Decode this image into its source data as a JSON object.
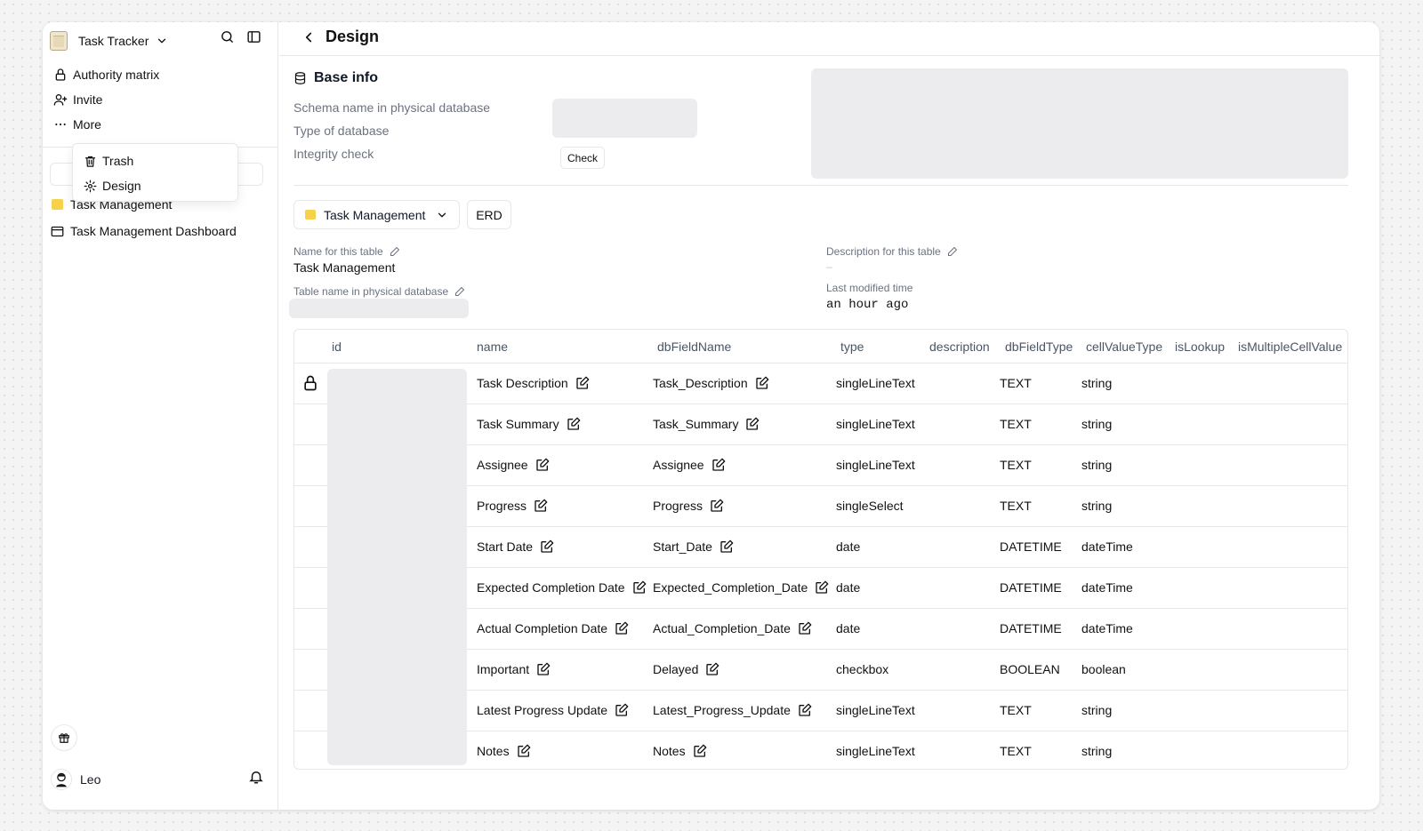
{
  "workspace": {
    "name": "Task Tracker"
  },
  "sidebar": {
    "nav": [
      {
        "label": "Authority matrix",
        "icon": "lock-icon"
      },
      {
        "label": "Invite",
        "icon": "user-plus-icon"
      },
      {
        "label": "More",
        "icon": "more-horizontal-icon"
      }
    ],
    "more_menu": [
      {
        "label": "Trash",
        "icon": "trash-icon"
      },
      {
        "label": "Design",
        "icon": "gear-icon"
      }
    ],
    "tables": [
      {
        "label": "Task Management",
        "icon": "folder-icon"
      },
      {
        "label": "Task Management Dashboard",
        "icon": "dashboard-icon"
      }
    ],
    "user": {
      "name": "Leo"
    }
  },
  "header": {
    "title": "Design"
  },
  "base_info": {
    "title": "Base info",
    "labels": {
      "schema": "Schema name in physical database",
      "db_type": "Type of database",
      "integrity": "Integrity check"
    },
    "check_button": "Check"
  },
  "table_selector": {
    "selected": "Task Management",
    "erd_label": "ERD"
  },
  "table_meta": {
    "name_label": "Name for this table",
    "name_value": "Task Management",
    "physical_label": "Table name in physical database",
    "description_label": "Description for this table",
    "description_value": "–",
    "modified_label": "Last modified time",
    "modified_value": "an hour ago"
  },
  "fields_table": {
    "columns": [
      "id",
      "name",
      "dbFieldName",
      "type",
      "description",
      "dbFieldType",
      "cellValueType",
      "isLookup",
      "isMultipleCellValue"
    ],
    "rows": [
      {
        "name": "Task Description",
        "dbFieldName": "Task_Description",
        "type": "singleLineText",
        "dbFieldType": "TEXT",
        "cellValueType": "string",
        "locked": true
      },
      {
        "name": "Task Summary",
        "dbFieldName": "Task_Summary",
        "type": "singleLineText",
        "dbFieldType": "TEXT",
        "cellValueType": "string"
      },
      {
        "name": "Assignee",
        "dbFieldName": "Assignee",
        "type": "singleLineText",
        "dbFieldType": "TEXT",
        "cellValueType": "string"
      },
      {
        "name": "Progress",
        "dbFieldName": "Progress",
        "type": "singleSelect",
        "dbFieldType": "TEXT",
        "cellValueType": "string"
      },
      {
        "name": "Start Date",
        "dbFieldName": "Start_Date",
        "type": "date",
        "dbFieldType": "DATETIME",
        "cellValueType": "dateTime"
      },
      {
        "name": "Expected Completion Date",
        "dbFieldName": "Expected_Completion_Date",
        "type": "date",
        "dbFieldType": "DATETIME",
        "cellValueType": "dateTime"
      },
      {
        "name": "Actual Completion Date",
        "dbFieldName": "Actual_Completion_Date",
        "type": "date",
        "dbFieldType": "DATETIME",
        "cellValueType": "dateTime"
      },
      {
        "name": "Important",
        "dbFieldName": "Delayed",
        "type": "checkbox",
        "dbFieldType": "BOOLEAN",
        "cellValueType": "boolean"
      },
      {
        "name": "Latest Progress Update",
        "dbFieldName": "Latest_Progress_Update",
        "type": "singleLineText",
        "dbFieldType": "TEXT",
        "cellValueType": "string"
      },
      {
        "name": "Notes",
        "dbFieldName": "Notes",
        "type": "singleLineText",
        "dbFieldType": "TEXT",
        "cellValueType": "string"
      }
    ]
  }
}
